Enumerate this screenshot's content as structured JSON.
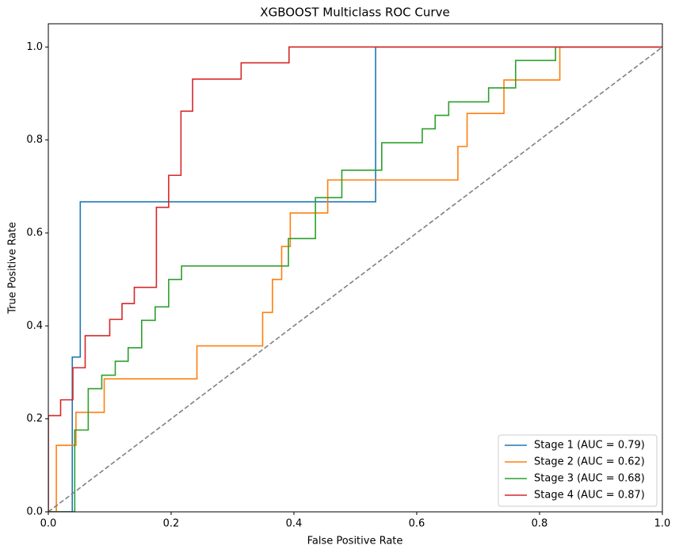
{
  "chart_data": {
    "type": "line",
    "title": "XGBOOST Multiclass ROC Curve",
    "x_label": "False Positive Rate",
    "y_label": "True Positive Rate",
    "xlim": [
      0,
      1
    ],
    "ylim": [
      0,
      1.05
    ],
    "xticks": [
      {
        "value": 0,
        "label": "0.0"
      },
      0.2,
      0.4,
      0.6,
      0.8,
      {
        "value": 1,
        "label": "1.0"
      }
    ],
    "yticks": [
      {
        "value": 0,
        "label": "0.0"
      },
      0.2,
      0.4,
      0.6,
      0.8,
      {
        "value": 1,
        "label": "1.0"
      }
    ],
    "grid": false,
    "legend": "lower right",
    "series": [
      {
        "name": "Stage 1 (AUC = 0.79)",
        "color": "#1f77b4",
        "x": [
          0,
          0.039,
          0.039,
          0.052,
          0.052,
          0.533,
          0.533,
          1
        ],
        "values": [
          0,
          0,
          0.333,
          0.333,
          0.667,
          0.667,
          1,
          1
        ]
      },
      {
        "name": "Stage 2 (AUC = 0.62)",
        "color": "#ff7f0e",
        "x": [
          0,
          0.013,
          0.013,
          0.045,
          0.045,
          0.091,
          0.091,
          0.242,
          0.242,
          0.349,
          0.349,
          0.365,
          0.365,
          0.38,
          0.38,
          0.394,
          0.394,
          0.455,
          0.455,
          0.667,
          0.667,
          0.682,
          0.682,
          0.742,
          0.742,
          0.833,
          0.833,
          1
        ],
        "values": [
          0,
          0,
          0.143,
          0.143,
          0.214,
          0.214,
          0.286,
          0.286,
          0.357,
          0.357,
          0.429,
          0.429,
          0.5,
          0.5,
          0.571,
          0.571,
          0.643,
          0.643,
          0.714,
          0.714,
          0.786,
          0.786,
          0.857,
          0.857,
          0.929,
          0.929,
          1,
          1
        ]
      },
      {
        "name": "Stage 3 (AUC = 0.68)",
        "color": "#2ca02c",
        "x": [
          0,
          0.043,
          0.043,
          0.065,
          0.065,
          0.087,
          0.087,
          0.109,
          0.109,
          0.13,
          0.13,
          0.152,
          0.152,
          0.174,
          0.174,
          0.196,
          0.196,
          0.217,
          0.217,
          0.391,
          0.391,
          0.435,
          0.435,
          0.478,
          0.478,
          0.543,
          0.543,
          0.609,
          0.609,
          0.63,
          0.63,
          0.652,
          0.652,
          0.717,
          0.717,
          0.761,
          0.761,
          0.826,
          0.826,
          1
        ],
        "values": [
          0,
          0,
          0.176,
          0.176,
          0.265,
          0.265,
          0.294,
          0.294,
          0.324,
          0.324,
          0.353,
          0.353,
          0.412,
          0.412,
          0.441,
          0.441,
          0.5,
          0.5,
          0.529,
          0.529,
          0.588,
          0.588,
          0.676,
          0.676,
          0.735,
          0.735,
          0.794,
          0.794,
          0.824,
          0.824,
          0.853,
          0.853,
          0.882,
          0.882,
          0.912,
          0.912,
          0.971,
          0.971,
          1,
          1
        ]
      },
      {
        "name": "Stage 4 (AUC = 0.87)",
        "color": "#d62728",
        "x": [
          0,
          0,
          0.02,
          0.02,
          0.04,
          0.04,
          0.06,
          0.06,
          0.1,
          0.1,
          0.12,
          0.12,
          0.14,
          0.14,
          0.176,
          0.176,
          0.196,
          0.196,
          0.216,
          0.216,
          0.235,
          0.235,
          0.314,
          0.314,
          0.392,
          0.392,
          1
        ],
        "values": [
          0,
          0.207,
          0.207,
          0.241,
          0.241,
          0.31,
          0.31,
          0.379,
          0.379,
          0.414,
          0.414,
          0.448,
          0.448,
          0.483,
          0.483,
          0.655,
          0.655,
          0.724,
          0.724,
          0.862,
          0.862,
          0.931,
          0.931,
          0.966,
          0.966,
          1,
          1
        ]
      }
    ],
    "reference_line": {
      "x": [
        0,
        1
      ],
      "values": [
        0,
        1
      ],
      "color": "#808080",
      "style": "dashed"
    }
  }
}
